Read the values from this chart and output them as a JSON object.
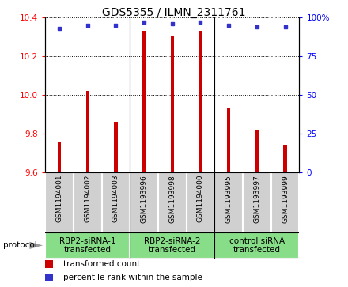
{
  "title": "GDS5355 / ILMN_2311761",
  "samples": [
    "GSM1194001",
    "GSM1194002",
    "GSM1194003",
    "GSM1193996",
    "GSM1193998",
    "GSM1194000",
    "GSM1193995",
    "GSM1193997",
    "GSM1193999"
  ],
  "transformed_count": [
    9.76,
    10.02,
    9.86,
    10.33,
    10.3,
    10.33,
    9.93,
    9.82,
    9.74
  ],
  "percentile_rank": [
    93,
    95,
    95,
    97,
    96,
    97,
    95,
    94,
    94
  ],
  "ylim_left": [
    9.6,
    10.4
  ],
  "ylim_right": [
    0,
    100
  ],
  "yticks_left": [
    9.6,
    9.8,
    10.0,
    10.2,
    10.4
  ],
  "yticks_right": [
    0,
    25,
    50,
    75,
    100
  ],
  "groups": [
    {
      "label": "RBP2-siRNA-1\ntransfected",
      "start": 0,
      "end": 2
    },
    {
      "label": "RBP2-siRNA-2\ntransfected",
      "start": 3,
      "end": 5
    },
    {
      "label": "control siRNA\ntransfected",
      "start": 6,
      "end": 8
    }
  ],
  "bar_color": "#cc0000",
  "dot_color": "#3333cc",
  "bar_width": 0.12,
  "sample_bg": "#d0d0d0",
  "group_bg": "#88dd88",
  "protocol_label": "protocol",
  "legend_bar_label": "transformed count",
  "legend_dot_label": "percentile rank within the sample",
  "title_fontsize": 10,
  "tick_fontsize": 7.5,
  "sample_fontsize": 6.5,
  "group_fontsize": 7.5,
  "legend_fontsize": 7.5
}
